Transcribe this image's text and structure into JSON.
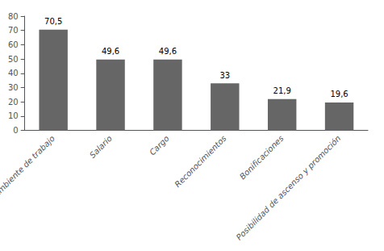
{
  "chart_data": {
    "type": "bar",
    "categories": [
      "Ambiente de trabajo",
      "Salario",
      "Cargo",
      "Reconocimientos",
      "Bonificaciones",
      "Posibilidad de ascenso y promoción"
    ],
    "values": [
      70.5,
      49.6,
      49.6,
      33,
      21.9,
      19.6
    ],
    "value_labels": [
      "70,5",
      "49,6",
      "49,6",
      "33",
      "21,9",
      "19,6"
    ],
    "data_labels": true,
    "color": "#666666",
    "ylim": [
      0,
      80
    ],
    "yticks": [
      0,
      10,
      20,
      30,
      40,
      50,
      60,
      70,
      80
    ],
    "grid": false
  }
}
